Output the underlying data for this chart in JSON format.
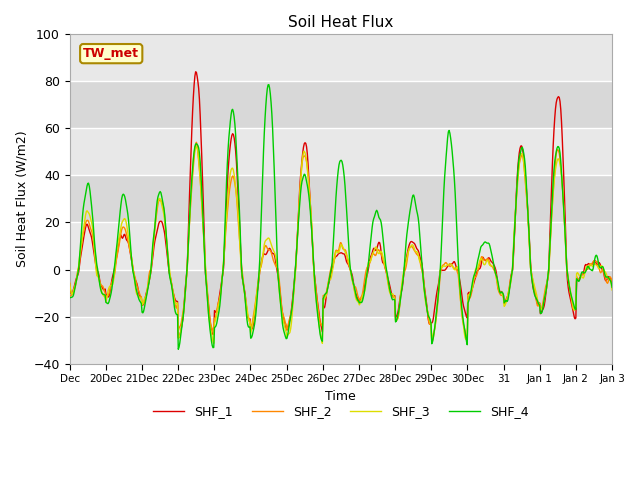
{
  "title": "Soil Heat Flux",
  "ylabel": "Soil Heat Flux (W/m2)",
  "xlabel": "Time",
  "ylim": [
    -40,
    100
  ],
  "annotation": "TW_met",
  "annotation_color": "#cc0000",
  "annotation_bg": "#ffffcc",
  "annotation_border": "#aa8800",
  "series_colors": {
    "SHF_1": "#dd0000",
    "SHF_2": "#ff8800",
    "SHF_3": "#dddd00",
    "SHF_4": "#00cc00"
  },
  "series_linewidth": 1.0,
  "plot_bg_color": "#e8e8e8",
  "band_color_light": "#e8e8e8",
  "band_color_dark": "#d8d8d8",
  "grid_color": "#ffffff",
  "yticks": [
    -40,
    -20,
    0,
    20,
    40,
    60,
    80,
    100
  ],
  "x_tick_positions": [
    0,
    1,
    2,
    3,
    4,
    5,
    6,
    7,
    8,
    9,
    10,
    11,
    12,
    13,
    14,
    15
  ],
  "x_tick_labels": [
    "Dec",
    "20Dec",
    "21Dec",
    "22Dec",
    "23Dec",
    "24Dec",
    "25Dec",
    "26Dec",
    "27Dec",
    "28Dec",
    "29Dec",
    "30Dec",
    "31",
    "Jan 1",
    "Jan 2",
    "Jan 3"
  ]
}
